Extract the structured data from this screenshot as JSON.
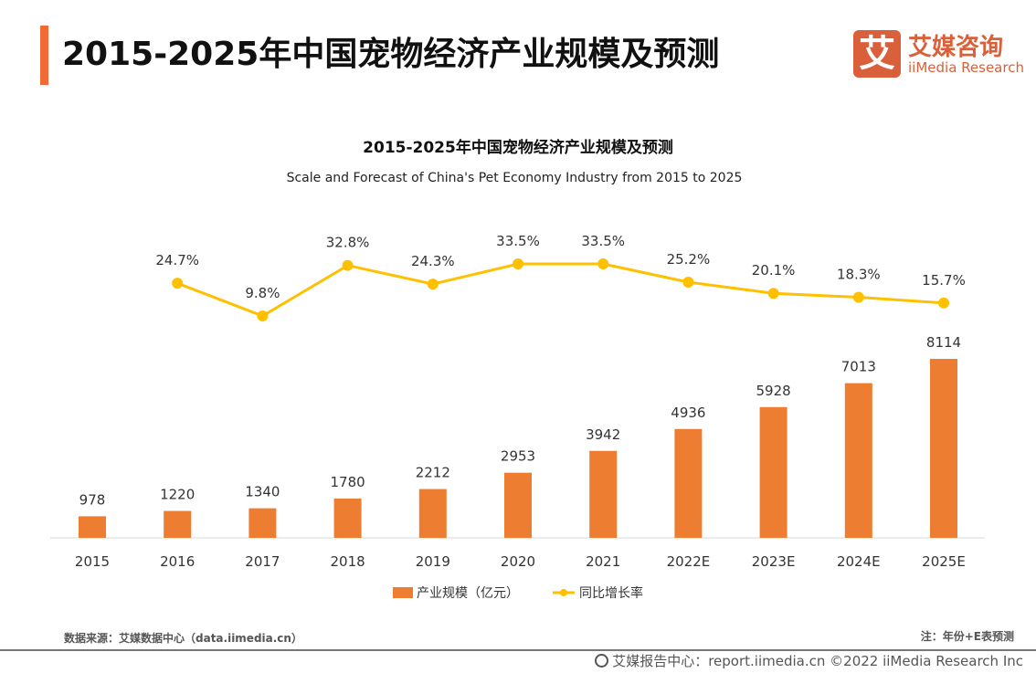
{
  "header": {
    "title": "2015-2025年中国宠物经济产业规模及预测"
  },
  "logo": {
    "mark": "艾",
    "cn": "艾媒咨询",
    "en": "iiMedia Research"
  },
  "chart_data": {
    "type": "bar+line",
    "title": "2015-2025年中国宠物经济产业规模及预测",
    "subtitle": "Scale and Forecast of China's Pet Economy Industry from 2015 to 2025",
    "categories": [
      "2015",
      "2016",
      "2017",
      "2018",
      "2019",
      "2020",
      "2021",
      "2022E",
      "2023E",
      "2024E",
      "2025E"
    ],
    "series": [
      {
        "name": "产业规模（亿元）",
        "type": "bar",
        "color": "#ed7d31",
        "values": [
          978,
          1220,
          1340,
          1780,
          2212,
          2953,
          3942,
          4936,
          5928,
          7013,
          8114
        ]
      },
      {
        "name": "同比增长率",
        "type": "line",
        "color": "#ffc000",
        "values": [
          null,
          24.7,
          9.8,
          32.8,
          24.3,
          33.5,
          33.5,
          25.2,
          20.1,
          18.3,
          15.7
        ],
        "labels": [
          "",
          "24.7%",
          "9.8%",
          "32.8%",
          "24.3%",
          "33.5%",
          "33.5%",
          "25.2%",
          "20.1%",
          "18.3%",
          "15.7%"
        ]
      }
    ],
    "legend": "bottom",
    "grid": false
  },
  "footer": {
    "source": "数据来源：艾媒数据中心（data.iimedia.cn）",
    "note": "注：年份+E表预测",
    "copyright": "艾媒报告中心：report.iimedia.cn   ©2022  iiMedia Research  Inc"
  }
}
